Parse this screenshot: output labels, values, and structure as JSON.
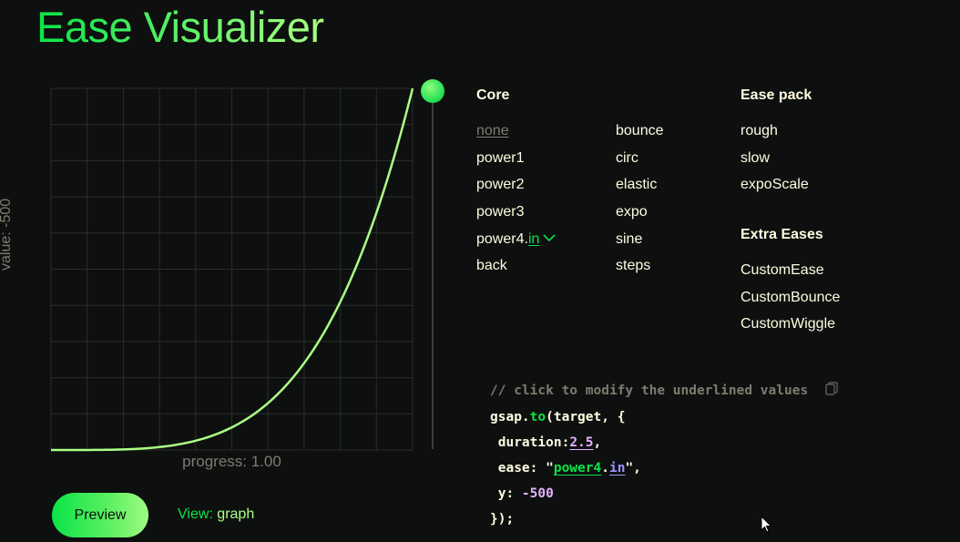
{
  "title": "Ease Visualizer",
  "graph": {
    "value_label": "value: -500",
    "progress_label": "progress: 1.00",
    "ease": "power4.in",
    "grid_divisions": 10,
    "curve_color": "#abff84",
    "grid_color": "#2a2d2a"
  },
  "controls": {
    "preview_label": "Preview",
    "view_key": "View:",
    "view_value": "graph"
  },
  "core": {
    "heading": "Core",
    "col1": [
      "none",
      "power1",
      "power2",
      "power3",
      "power4",
      "back"
    ],
    "col2": [
      "bounce",
      "circ",
      "elastic",
      "expo",
      "sine",
      "steps"
    ],
    "selected_base": "power4",
    "selected_dot": ".",
    "selected_suffix": "in"
  },
  "ease_pack": {
    "heading": "Ease pack",
    "items": [
      "rough",
      "slow",
      "expoScale"
    ]
  },
  "extra_eases": {
    "heading": "Extra Eases",
    "items": [
      "CustomEase",
      "CustomBounce",
      "CustomWiggle"
    ]
  },
  "code": {
    "comment": "// click to modify the underlined values",
    "obj": "gsap",
    "dot": ".",
    "method": "to",
    "call_open": "(target, {",
    "duration_key": " duration:",
    "duration_value": "2.5",
    "duration_end": ",",
    "ease_key": " ease: \"",
    "ease_base": "power4",
    "ease_dot": ".",
    "ease_suffix": "in",
    "ease_end": "\",",
    "y_key": " y: ",
    "y_value": "-500",
    "close": "});"
  },
  "colors": {
    "accent_green": "#0ae448",
    "light_green": "#abff84",
    "purple": "#e6b2ff",
    "background": "#0e100f"
  }
}
